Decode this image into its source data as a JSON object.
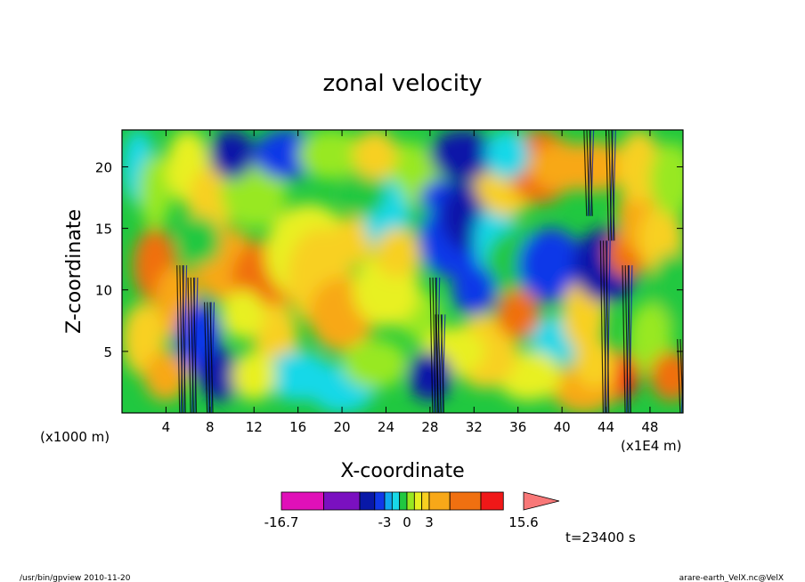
{
  "chart_data": {
    "type": "heatmap",
    "title": "zonal velocity",
    "xlabel": "X-coordinate",
    "ylabel": "Z-coordinate",
    "x_unit_left": "(x1000 m)",
    "x_unit_right": "(x1E4 m)",
    "xlim": [
      0,
      51
    ],
    "ylim": [
      0,
      23
    ],
    "xticks": [
      4,
      8,
      12,
      16,
      20,
      24,
      28,
      32,
      36,
      40,
      44,
      48
    ],
    "yticks": [
      5,
      10,
      15,
      20
    ],
    "colorbar": {
      "min_label": "-16.7",
      "max_label": "15.6",
      "tick_labels": [
        "-16.7",
        "-3",
        "0",
        "3",
        "15.6"
      ],
      "levels": [
        -16.7,
        -12,
        -8,
        -5,
        -3,
        -2,
        -1,
        0,
        1,
        2,
        3,
        5,
        8,
        12,
        15.6
      ],
      "colors": [
        "#e010b8",
        "#7a10c0",
        "#0818a8",
        "#1038e8",
        "#10a8f0",
        "#18d8e8",
        "#20c840",
        "#98e820",
        "#e8f020",
        "#f8d020",
        "#f8a818",
        "#f07010",
        "#f01818",
        "#f87878"
      ]
    },
    "time_label": "t=23400 s",
    "footer_left": "/usr/bin/gpview   2010-11-20",
    "footer_right": "arare-earth_VelX.nc@VelX"
  }
}
